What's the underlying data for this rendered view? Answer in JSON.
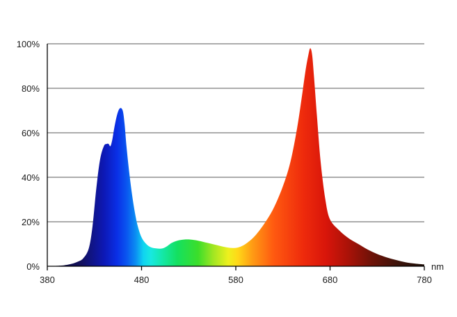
{
  "chart_data": {
    "type": "area",
    "title": "",
    "xlabel": "nm",
    "ylabel": "",
    "xlim": [
      380,
      780
    ],
    "ylim": [
      0,
      100
    ],
    "x_ticks": [
      "380",
      "480",
      "580",
      "680",
      "780"
    ],
    "y_ticks": [
      "0%",
      "20%",
      "40%",
      "60%",
      "80%",
      "100%"
    ],
    "grid": true,
    "fill": "visible-spectrum gradient",
    "series": [
      {
        "x": [
          380,
          395,
          405,
          412,
          418,
          424,
          428,
          432,
          436,
          440,
          443,
          445,
          447,
          449,
          451,
          454,
          457,
          460,
          462,
          464,
          467,
          470,
          473,
          476,
          480,
          485,
          490,
          496,
          502,
          507,
          512,
          518,
          525,
          532,
          540,
          550,
          560,
          570,
          578,
          585,
          592,
          600,
          610,
          620,
          630,
          638,
          645,
          650,
          654,
          657,
          659,
          661,
          663,
          666,
          670,
          675,
          680,
          690,
          700,
          710,
          720,
          730,
          740,
          750,
          760,
          770,
          780
        ],
        "y": [
          0,
          0.3,
          1,
          2,
          3.5,
          8,
          18,
          35,
          48,
          54,
          55,
          55,
          54,
          57,
          62,
          68,
          71,
          70,
          64,
          54,
          42,
          32,
          24,
          18,
          13,
          10,
          8.5,
          8,
          8,
          9,
          10.5,
          11.5,
          12,
          12,
          11.5,
          10.5,
          9.5,
          8.5,
          8.2,
          8.8,
          10.5,
          13.5,
          19,
          26,
          36,
          47,
          62,
          76,
          88,
          95,
          98,
          95,
          85,
          68,
          47,
          30,
          21,
          16,
          12.5,
          10,
          7.5,
          5.5,
          4,
          2.8,
          1.8,
          1.2,
          0.8
        ]
      }
    ]
  }
}
